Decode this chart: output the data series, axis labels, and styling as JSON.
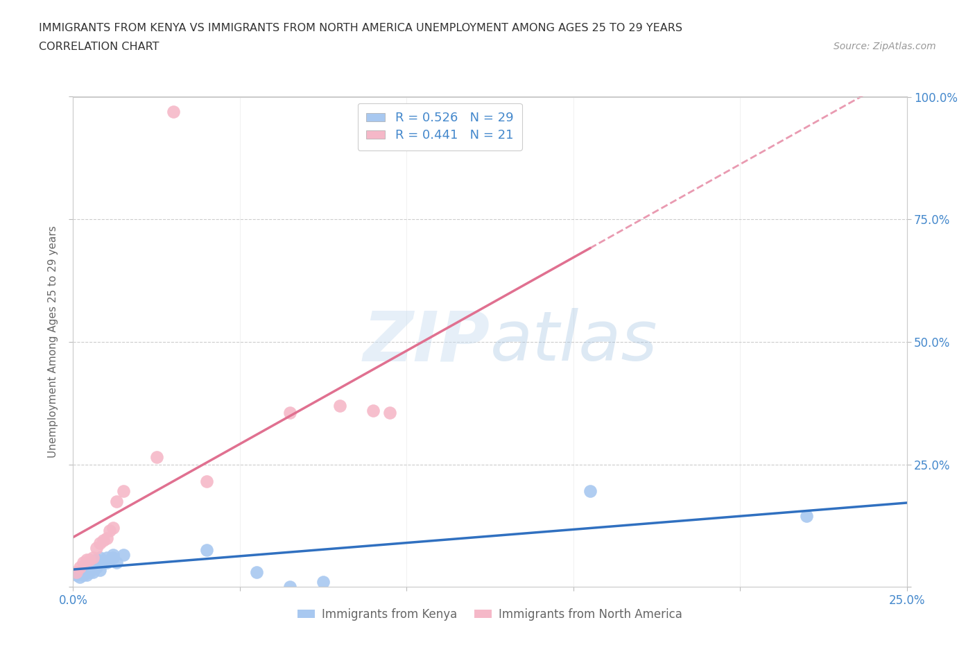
{
  "title_line1": "IMMIGRANTS FROM KENYA VS IMMIGRANTS FROM NORTH AMERICA UNEMPLOYMENT AMONG AGES 25 TO 29 YEARS",
  "title_line2": "CORRELATION CHART",
  "source": "Source: ZipAtlas.com",
  "ylabel": "Unemployment Among Ages 25 to 29 years",
  "xlim": [
    0.0,
    0.25
  ],
  "ylim": [
    0.0,
    1.0
  ],
  "kenya_R": 0.526,
  "kenya_N": 29,
  "na_R": 0.441,
  "na_N": 21,
  "kenya_color": "#a8c8f0",
  "na_color": "#f5b8c8",
  "kenya_line_color": "#3070c0",
  "na_line_color": "#e07090",
  "kenya_scatter_x": [
    0.001,
    0.002,
    0.002,
    0.003,
    0.003,
    0.004,
    0.004,
    0.005,
    0.005,
    0.006,
    0.006,
    0.007,
    0.007,
    0.008,
    0.008,
    0.009,
    0.01,
    0.01,
    0.011,
    0.012,
    0.012,
    0.013,
    0.015,
    0.04,
    0.055,
    0.065,
    0.075,
    0.155,
    0.22
  ],
  "kenya_scatter_y": [
    0.025,
    0.02,
    0.03,
    0.025,
    0.035,
    0.025,
    0.04,
    0.03,
    0.045,
    0.03,
    0.05,
    0.04,
    0.055,
    0.035,
    0.06,
    0.05,
    0.05,
    0.06,
    0.055,
    0.06,
    0.065,
    0.05,
    0.065,
    0.075,
    0.03,
    0.0,
    0.01,
    0.195,
    0.145
  ],
  "na_scatter_x": [
    0.001,
    0.002,
    0.003,
    0.004,
    0.005,
    0.006,
    0.007,
    0.008,
    0.009,
    0.01,
    0.011,
    0.012,
    0.013,
    0.015,
    0.025,
    0.04,
    0.065,
    0.08,
    0.09,
    0.095,
    0.03
  ],
  "na_scatter_y": [
    0.03,
    0.04,
    0.05,
    0.055,
    0.055,
    0.06,
    0.08,
    0.09,
    0.095,
    0.1,
    0.115,
    0.12,
    0.175,
    0.195,
    0.265,
    0.215,
    0.355,
    0.37,
    0.36,
    0.355,
    0.97
  ],
  "na_line_x_end": 0.155,
  "na_line_x_dash_end": 0.25,
  "watermark_zip": "ZIP",
  "watermark_atlas": "atlas",
  "legend_kenya_label": "R = 0.526   N = 29",
  "legend_na_label": "R = 0.441   N = 21",
  "background_color": "#ffffff",
  "grid_color": "#cccccc"
}
